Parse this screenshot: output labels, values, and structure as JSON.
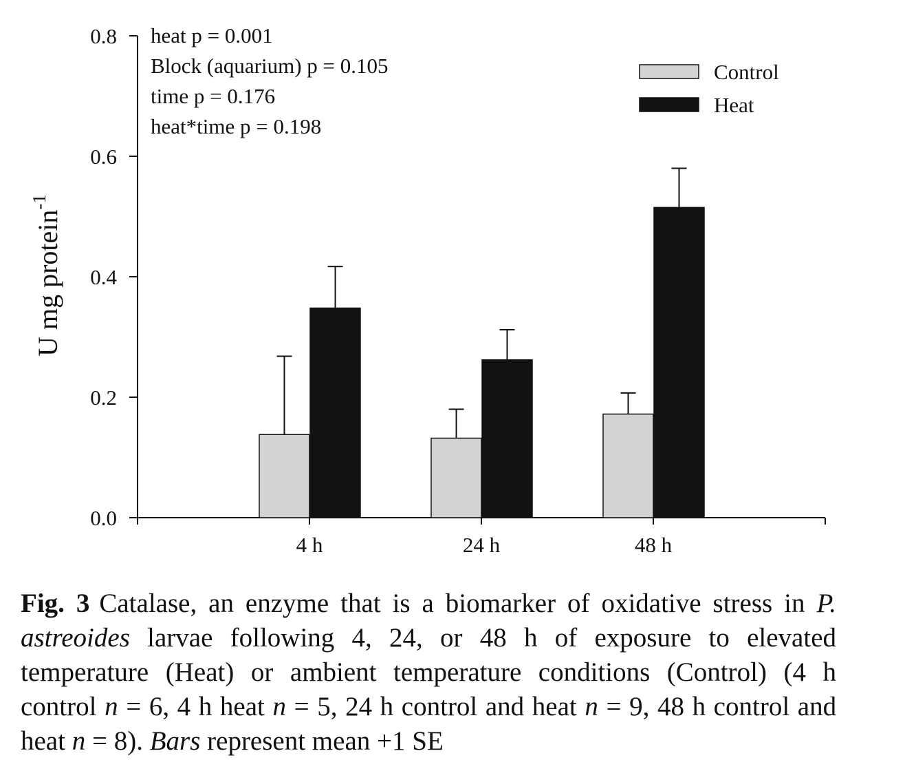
{
  "chart_data": {
    "type": "bar",
    "categories": [
      "4 h",
      "24 h",
      "48 h"
    ],
    "series": [
      {
        "name": "Control",
        "values": [
          0.138,
          0.132,
          0.172
        ],
        "se": [
          0.13,
          0.048,
          0.035
        ],
        "color": "#d3d3d3"
      },
      {
        "name": "Heat",
        "values": [
          0.348,
          0.262,
          0.515
        ],
        "se": [
          0.069,
          0.05,
          0.065
        ],
        "color": "#121212"
      }
    ],
    "ylabel_main": "U mg protein",
    "ylabel_sup": "-1",
    "ylim": [
      0,
      0.8
    ],
    "yticks": [
      "0.0",
      "0.2",
      "0.4",
      "0.6",
      "0.8"
    ],
    "legend_position": "top-right",
    "annotations": [
      "heat p = 0.001",
      "Block (aquarium) p = 0.105",
      "time p = 0.176",
      "heat*time p = 0.198"
    ]
  },
  "caption": {
    "fig_label": "Fig. 3",
    "species": "P. astreoides",
    "text_1": "Catalase, an enzyme that is a biomarker of oxidative stress in",
    "text_2": "larvae following 4, 24, or 48 h of exposure to elevated temperature (Heat) or ambient temperature conditions (Control) (4 h control",
    "n_1": "n",
    "text_3": "= 6, 4 h heat",
    "n_2": "n",
    "text_4": "= 5, 24 h control and heat",
    "n_3": "n",
    "text_5": "= 9, 48 h control and heat",
    "n_4": "n",
    "text_6": "= 8).",
    "bars_word": "Bars",
    "text_7": "represent mean +1 SE"
  }
}
